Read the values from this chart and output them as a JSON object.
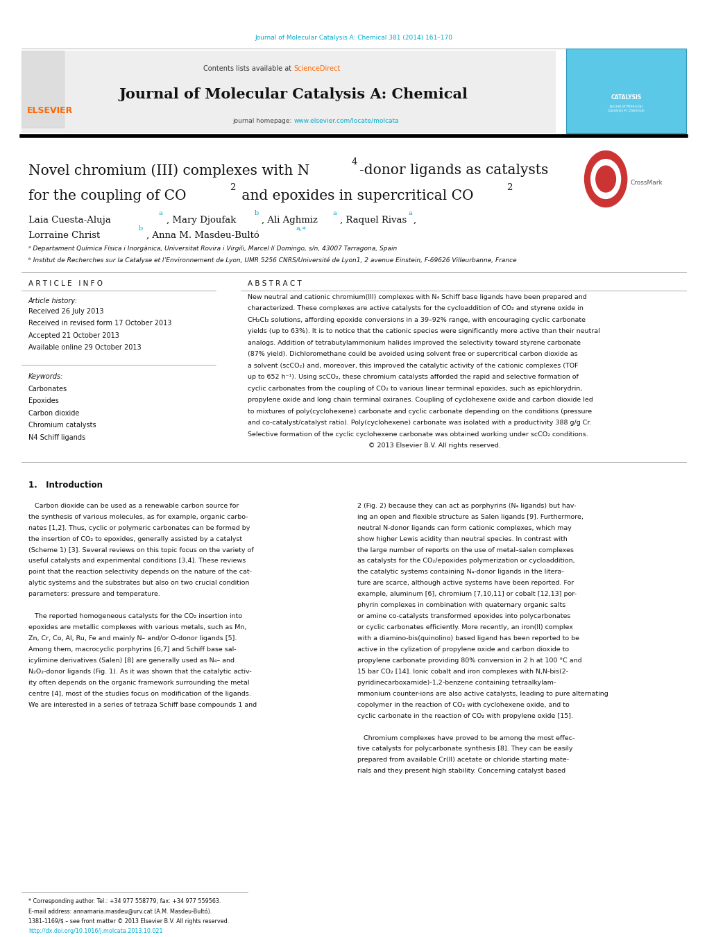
{
  "page_width": 10.2,
  "page_height": 13.51,
  "background_color": "#ffffff",
  "journal_ref": "Journal of Molecular Catalysis A: Chemical 381 (2014) 161–170",
  "journal_ref_color": "#00aacc",
  "header_bg": "#f0f0f0",
  "header_text": "Contents lists available at ",
  "header_sciencedirect": "ScienceDirect",
  "header_sciencedirect_color": "#ff6600",
  "journal_title": "Journal of Molecular Catalysis A: Chemical",
  "homepage_label": "journal homepage: ",
  "homepage_url": "www.elsevier.com/locate/molcata",
  "homepage_color": "#00aacc",
  "elsevier_color": "#ff6600",
  "affil_a": "ᵃ Departament Química Física i Inorgànica, Universitat Rovira i Virgili, Marcel·lí Domingo, s/n, 43007 Tarragona, Spain",
  "affil_b": "ᵇ Institut de Recherches sur la Catalyse et l’Environnement de Lyon, UMR 5256 CNRS/Université de Lyon1, 2 avenue Einstein, F-69626 Villeurbanne, France",
  "article_info_header": "A R T I C L E   I N F O",
  "abstract_header": "A B S T R A C T",
  "article_history_label": "Article history:",
  "article_history": [
    "Received 26 July 2013",
    "Received in revised form 17 October 2013",
    "Accepted 21 October 2013",
    "Available online 29 October 2013"
  ],
  "keywords_label": "Keywords:",
  "keywords": [
    "Carbonates",
    "Epoxides",
    "Carbon dioxide",
    "Chromium catalysts",
    "N4 Schiff ligands"
  ],
  "footnote_star": "* Corresponding author. Tel.: +34 977 558779; fax: +34 977 559563.",
  "footnote_email": "E-mail address: annamaria.masdeu@urv.cat (A.M. Masdeu-Bultó).",
  "footer_issn": "1381-1169/$ – see front matter © 2013 Elsevier B.V. All rights reserved.",
  "footer_doi": "http://dx.doi.org/10.1016/j.molcata.2013.10.021"
}
